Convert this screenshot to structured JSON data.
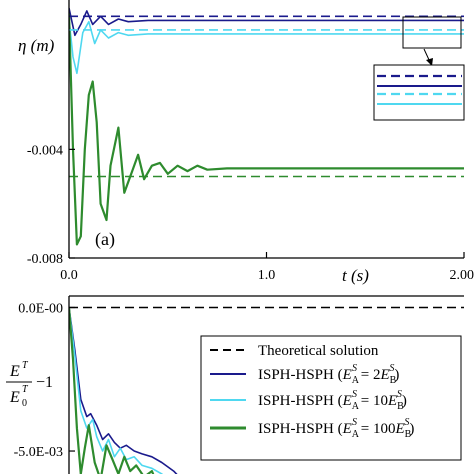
{
  "chart_data": [
    {
      "type": "line",
      "panel_label": "(a)",
      "ylabel": "η (m)",
      "xlabel": "t (s)",
      "xlim": [
        0.0,
        2.0
      ],
      "ylim": [
        -0.008,
        0.0015
      ],
      "x_ticks": [
        "0.0",
        "1.0",
        "2.00"
      ],
      "y_ticks": [
        "-0.004",
        "-0.008"
      ],
      "colors": {
        "navy": "#1a1a8c",
        "cyan": "#4fd8f0",
        "green": "#2e8b2e"
      },
      "series": [
        {
          "style": "solid",
          "color": "navy",
          "x": [
            0.0,
            0.03,
            0.06,
            0.09,
            0.12,
            0.16,
            0.2,
            0.25,
            0.3,
            0.4,
            0.6,
            1.0,
            2.0
          ],
          "y": [
            0.0012,
            0.0002,
            0.0006,
            0.0011,
            0.0006,
            0.0009,
            0.0006,
            0.0008,
            0.0007,
            0.00075,
            0.00075,
            0.00075,
            0.00075
          ]
        },
        {
          "style": "solid",
          "color": "cyan",
          "x": [
            0.0,
            0.02,
            0.04,
            0.07,
            0.1,
            0.13,
            0.16,
            0.2,
            0.25,
            0.3,
            0.4,
            0.6,
            1.0,
            2.0
          ],
          "y": [
            0.0008,
            -0.0006,
            -0.0012,
            0.0003,
            0.0007,
            -0.0001,
            0.0004,
            0.0001,
            0.0003,
            0.0002,
            0.00025,
            0.00025,
            0.00025,
            0.00025
          ]
        },
        {
          "style": "solid",
          "color": "green",
          "x": [
            0.0,
            0.02,
            0.04,
            0.06,
            0.08,
            0.1,
            0.12,
            0.14,
            0.16,
            0.19,
            0.21,
            0.25,
            0.28,
            0.32,
            0.35,
            0.38,
            0.42,
            0.46,
            0.5,
            0.55,
            0.6,
            0.65,
            0.7,
            0.8,
            1.0,
            1.5,
            2.0
          ],
          "y": [
            0.001,
            -0.004,
            -0.0075,
            -0.0072,
            -0.004,
            -0.002,
            -0.0015,
            -0.003,
            -0.006,
            -0.0066,
            -0.0046,
            -0.0032,
            -0.0056,
            -0.0048,
            -0.0042,
            -0.0051,
            -0.0046,
            -0.0045,
            -0.0049,
            -0.0046,
            -0.0048,
            -0.0046,
            -0.00475,
            -0.0047,
            -0.0047,
            -0.0047,
            -0.0047
          ]
        },
        {
          "style": "dashed",
          "color": "navy",
          "x": [
            0.0,
            2.0
          ],
          "y": [
            0.0009,
            0.0009
          ]
        },
        {
          "style": "dashed",
          "color": "cyan",
          "x": [
            0.0,
            2.0
          ],
          "y": [
            0.0004,
            0.0004
          ]
        },
        {
          "style": "dashed",
          "color": "green",
          "x": [
            0.0,
            2.0
          ],
          "y": [
            -0.005,
            -0.005
          ]
        }
      ]
    },
    {
      "type": "line",
      "ylabel_num": "E",
      "ylabel_num_sup": "T",
      "ylabel_den": "E",
      "ylabel_den_sub": "0",
      "ylabel_den_sup": "T",
      "ylabel_tail": "−1",
      "xlim": [
        0.0,
        2.0
      ],
      "ylim": [
        -0.0058,
        0.0004
      ],
      "y_ticks": [
        "0.0E-00",
        "-5.0E-03"
      ],
      "legend_position": "top-right",
      "legend": [
        {
          "text": "Theoretical solution",
          "style": "dashed",
          "color": "black"
        },
        {
          "text": "ISPH-HSPH (",
          "ea": "E",
          "ea_sub": "A",
          "ea_sup": "S",
          "mid": " = 2",
          "eb": "E",
          "eb_sub": "B",
          "eb_sup": "S",
          "end": ")",
          "style": "solid",
          "color": "navy"
        },
        {
          "text": "ISPH-HSPH (",
          "ea": "E",
          "ea_sub": "A",
          "ea_sup": "S",
          "mid": " = 10",
          "eb": "E",
          "eb_sub": "B",
          "eb_sup": "S",
          "end": ")",
          "style": "solid",
          "color": "cyan"
        },
        {
          "text": "ISPH-HSPH (",
          "ea": "E",
          "ea_sub": "A",
          "ea_sup": "S",
          "mid": " = 100",
          "eb": "E",
          "eb_sub": "B",
          "eb_sup": "S",
          "end": ")",
          "style": "solid",
          "color": "green"
        }
      ],
      "series": [
        {
          "style": "dashed",
          "color": "black",
          "x": [
            0.0,
            2.0
          ],
          "y": [
            0.0,
            0.0
          ]
        },
        {
          "style": "solid",
          "color": "navy",
          "x": [
            0.0,
            0.03,
            0.06,
            0.09,
            0.11,
            0.14,
            0.17,
            0.2,
            0.23,
            0.26,
            0.29,
            0.33,
            0.37,
            0.42,
            0.47,
            0.53,
            0.6
          ],
          "y": [
            0.0,
            -0.0015,
            -0.0032,
            -0.0038,
            -0.0037,
            -0.0041,
            -0.0046,
            -0.0044,
            -0.0047,
            -0.0049,
            -0.0048,
            -0.005,
            -0.0051,
            -0.0052,
            -0.0054,
            -0.0057,
            -0.0062
          ]
        },
        {
          "style": "solid",
          "color": "cyan",
          "x": [
            0.0,
            0.03,
            0.06,
            0.09,
            0.12,
            0.14,
            0.17,
            0.2,
            0.23,
            0.26,
            0.29,
            0.33,
            0.37,
            0.42,
            0.47,
            0.53
          ],
          "y": [
            0.0,
            -0.0017,
            -0.0036,
            -0.0042,
            -0.0039,
            -0.0045,
            -0.005,
            -0.0046,
            -0.0052,
            -0.0049,
            -0.0053,
            -0.0052,
            -0.0055,
            -0.0056,
            -0.0058,
            -0.0061
          ]
        },
        {
          "style": "solid",
          "color": "green",
          "x": [
            0.0,
            0.02,
            0.04,
            0.06,
            0.08,
            0.1,
            0.13,
            0.16,
            0.19,
            0.22,
            0.25,
            0.28,
            0.31,
            0.34,
            0.38,
            0.42,
            0.45
          ],
          "y": [
            0.0,
            -0.0018,
            -0.0042,
            -0.0058,
            -0.0049,
            -0.0041,
            -0.0054,
            -0.006,
            -0.0048,
            -0.0053,
            -0.0058,
            -0.0052,
            -0.0057,
            -0.0055,
            -0.0059,
            -0.0057,
            -0.0062
          ]
        }
      ]
    }
  ]
}
